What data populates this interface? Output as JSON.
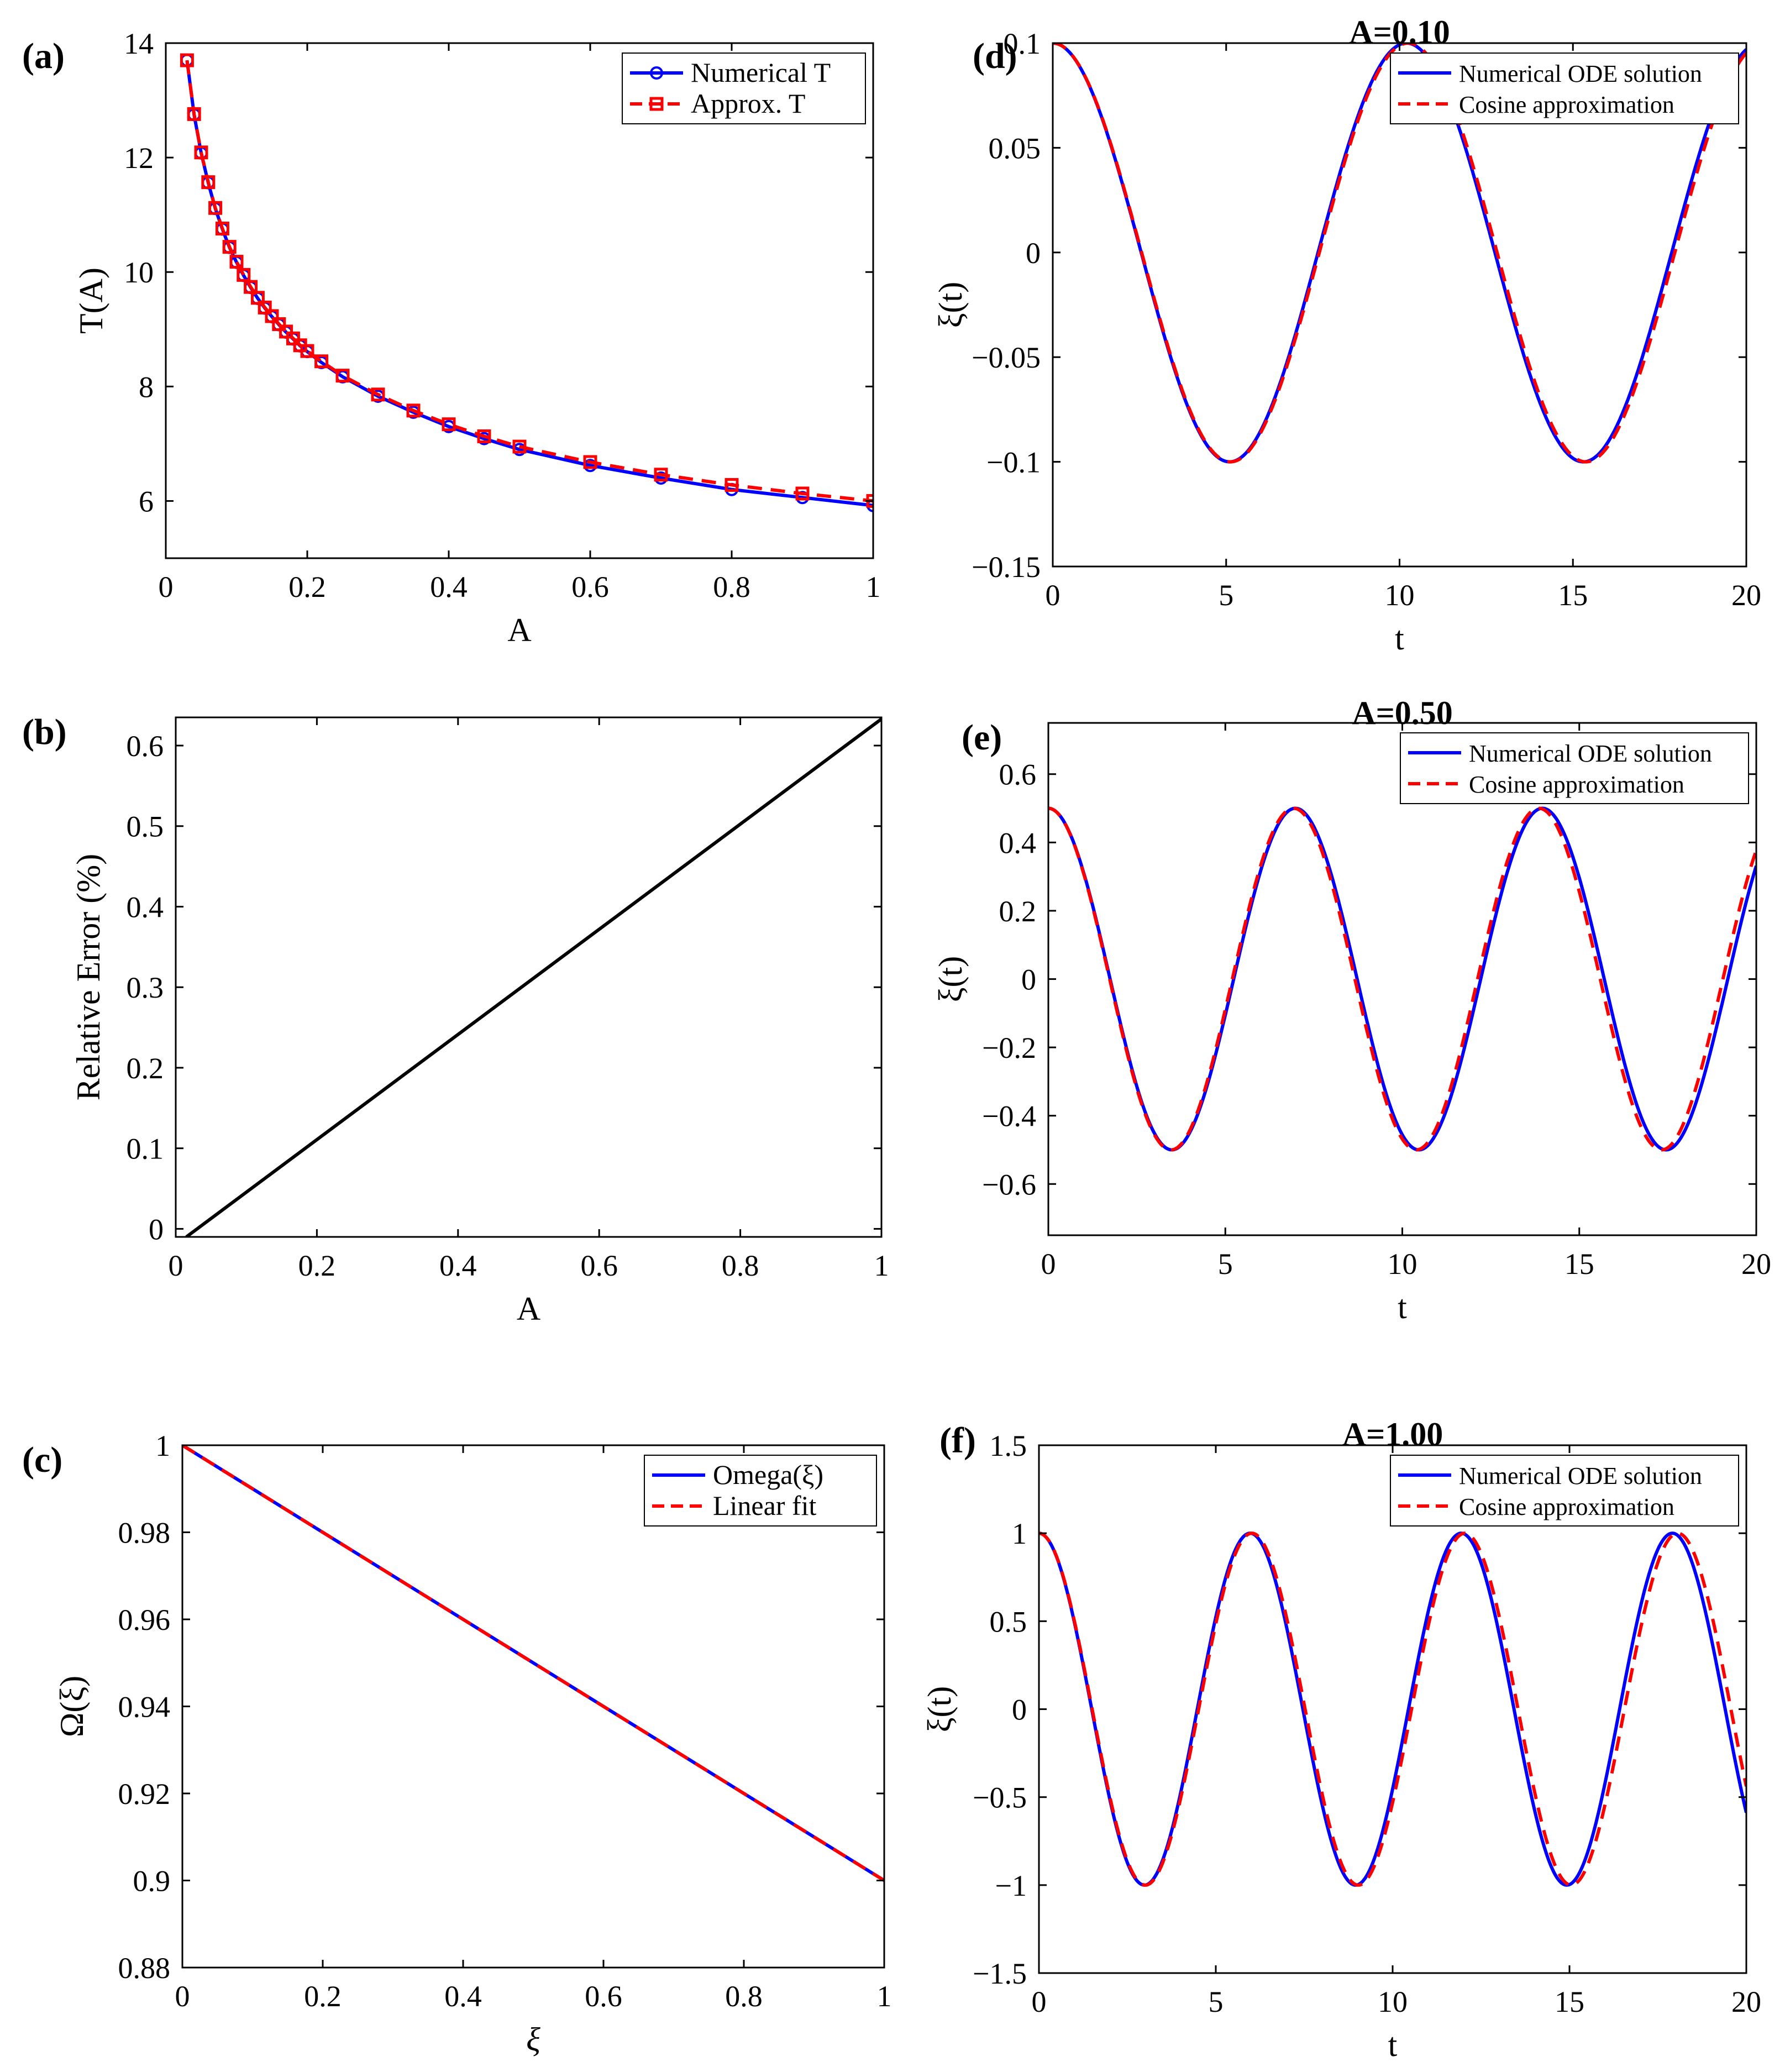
{
  "colors": {
    "blue": "#0000ff",
    "red": "#ff0000",
    "black": "#000000",
    "axis": "#000000"
  },
  "chart_data": [
    {
      "id": "a",
      "panel_label": "(a)",
      "type": "line",
      "title": "",
      "xlabel": "A",
      "ylabel": "T(A)",
      "xlim": [
        0,
        1
      ],
      "ylim": [
        5,
        14
      ],
      "xticks": [
        0,
        0.2,
        0.4,
        0.6,
        0.8,
        1
      ],
      "xtick_labels": [
        "0",
        "0.2",
        "0.4",
        "0.6",
        "0.8",
        "1"
      ],
      "yticks": [
        6,
        8,
        10,
        12,
        14
      ],
      "ytick_labels": [
        "6",
        "8",
        "10",
        "12",
        "14"
      ],
      "legend": {
        "position": "top-right"
      },
      "series": [
        {
          "name": "Numerical T",
          "color": "#0000ff",
          "style": "solid",
          "marker": "circle",
          "x": [
            0.03,
            0.04,
            0.05,
            0.06,
            0.07,
            0.08,
            0.09,
            0.1,
            0.11,
            0.12,
            0.13,
            0.14,
            0.15,
            0.16,
            0.17,
            0.18,
            0.19,
            0.2,
            0.22,
            0.25,
            0.3,
            0.35,
            0.4,
            0.45,
            0.5,
            0.6,
            0.7,
            0.8,
            0.9,
            1.0
          ],
          "y": [
            13.7,
            12.75,
            12.08,
            11.56,
            11.11,
            10.75,
            10.43,
            10.17,
            9.94,
            9.73,
            9.54,
            9.37,
            9.22,
            9.08,
            8.95,
            8.83,
            8.71,
            8.61,
            8.42,
            8.17,
            7.83,
            7.55,
            7.3,
            7.09,
            6.9,
            6.62,
            6.4,
            6.2,
            6.06,
            5.92
          ]
        },
        {
          "name": "Approx. T",
          "color": "#ff0000",
          "style": "dashed",
          "marker": "square",
          "x": [
            0.03,
            0.04,
            0.05,
            0.06,
            0.07,
            0.08,
            0.09,
            0.1,
            0.11,
            0.12,
            0.13,
            0.14,
            0.15,
            0.16,
            0.17,
            0.18,
            0.19,
            0.2,
            0.22,
            0.25,
            0.3,
            0.35,
            0.4,
            0.45,
            0.5,
            0.6,
            0.7,
            0.8,
            0.9,
            1.0
          ],
          "y": [
            13.7,
            12.76,
            12.09,
            11.57,
            11.12,
            10.76,
            10.44,
            10.18,
            9.95,
            9.74,
            9.55,
            9.38,
            9.23,
            9.09,
            8.96,
            8.84,
            8.72,
            8.62,
            8.44,
            8.19,
            7.86,
            7.58,
            7.34,
            7.13,
            6.95,
            6.68,
            6.46,
            6.28,
            6.13,
            6.0
          ]
        }
      ]
    },
    {
      "id": "b",
      "panel_label": "(b)",
      "type": "line",
      "title": "",
      "xlabel": "A",
      "ylabel": "Relative Error (%)",
      "xlim": [
        0,
        1
      ],
      "ylim": [
        -0.01,
        0.635
      ],
      "xticks": [
        0,
        0.2,
        0.4,
        0.6,
        0.8,
        1
      ],
      "xtick_labels": [
        "0",
        "0.2",
        "0.4",
        "0.6",
        "0.8",
        "1"
      ],
      "yticks": [
        0,
        0.1,
        0.2,
        0.3,
        0.4,
        0.5,
        0.6
      ],
      "ytick_labels": [
        "0",
        "0.1",
        "0.2",
        "0.3",
        "0.4",
        "0.5",
        "0.6"
      ],
      "legend": null,
      "series": [
        {
          "name": "Relative Error",
          "color": "#000000",
          "style": "solid",
          "marker": "none",
          "x": [
            0.015,
            1.0
          ],
          "y": [
            -0.01,
            0.633
          ]
        }
      ]
    },
    {
      "id": "c",
      "panel_label": "(c)",
      "type": "line",
      "title": "",
      "xlabel": "ξ",
      "ylabel": "Ω(ξ)",
      "xlim": [
        0,
        1
      ],
      "ylim": [
        0.88,
        1.0
      ],
      "xticks": [
        0,
        0.2,
        0.4,
        0.6,
        0.8,
        1
      ],
      "xtick_labels": [
        "0",
        "0.2",
        "0.4",
        "0.6",
        "0.8",
        "1"
      ],
      "yticks": [
        0.88,
        0.9,
        0.92,
        0.94,
        0.96,
        0.98,
        1.0
      ],
      "ytick_labels": [
        "0.88",
        "0.9",
        "0.92",
        "0.94",
        "0.96",
        "0.98",
        "1"
      ],
      "legend": {
        "position": "top-right"
      },
      "series": [
        {
          "name": "Omega(ξ)",
          "color": "#0000ff",
          "style": "solid",
          "marker": "none",
          "x": [
            0,
            1
          ],
          "y": [
            1.0,
            0.9
          ]
        },
        {
          "name": "Linear fit",
          "color": "#ff0000",
          "style": "dashed",
          "marker": "none",
          "x": [
            0,
            1
          ],
          "y": [
            1.0,
            0.9
          ]
        }
      ]
    },
    {
      "id": "d",
      "panel_label": "(d)",
      "type": "line",
      "title": "A=0.10",
      "xlabel": "t",
      "ylabel": "ξ(t)",
      "xlim": [
        0,
        20
      ],
      "ylim": [
        -0.15,
        0.1
      ],
      "xticks": [
        0,
        5,
        10,
        15,
        20
      ],
      "xtick_labels": [
        "0",
        "5",
        "10",
        "15",
        "20"
      ],
      "yticks": [
        -0.15,
        -0.1,
        -0.05,
        0,
        0.05,
        0.1
      ],
      "ytick_labels": [
        "−0.15",
        "−0.1",
        "−0.05",
        "0",
        "0.05",
        "0.1"
      ],
      "legend": {
        "position": "top-right"
      },
      "series": [
        {
          "name": "Numerical ODE solution",
          "color": "#0000ff",
          "style": "solid",
          "function": "cosine",
          "amplitude": 0.1,
          "period": 10.2
        },
        {
          "name": "Cosine approximation",
          "color": "#ff0000",
          "style": "dashed",
          "function": "cosine",
          "amplitude": 0.1,
          "period": 10.25
        }
      ]
    },
    {
      "id": "e",
      "panel_label": "(e)",
      "type": "line",
      "title": "A=0.50",
      "xlabel": "t",
      "ylabel": "ξ(t)",
      "xlim": [
        0,
        20
      ],
      "ylim": [
        -0.75,
        0.75
      ],
      "xticks": [
        0,
        5,
        10,
        15,
        20
      ],
      "xtick_labels": [
        "0",
        "5",
        "10",
        "15",
        "20"
      ],
      "yticks": [
        -0.6,
        -0.4,
        -0.2,
        0,
        0.2,
        0.4,
        0.6
      ],
      "ytick_labels": [
        "−0.6",
        "−0.4",
        "−0.2",
        "0",
        "0.2",
        "0.4",
        "0.6"
      ],
      "legend": {
        "position": "top-right"
      },
      "series": [
        {
          "name": "Numerical ODE solution",
          "color": "#0000ff",
          "style": "solid",
          "function": "cosine",
          "amplitude": 0.5,
          "period": 6.98
        },
        {
          "name": "Cosine approximation",
          "color": "#ff0000",
          "style": "dashed",
          "function": "cosine",
          "amplitude": 0.5,
          "period": 6.93
        }
      ]
    },
    {
      "id": "f",
      "panel_label": "(f)",
      "type": "line",
      "title": "A=1.00",
      "xlabel": "t",
      "ylabel": "ξ(t)",
      "xlim": [
        0,
        20
      ],
      "ylim": [
        -1.5,
        1.5
      ],
      "xticks": [
        0,
        5,
        10,
        15,
        20
      ],
      "xtick_labels": [
        "0",
        "5",
        "10",
        "15",
        "20"
      ],
      "yticks": [
        -1.5,
        -1,
        -0.5,
        0,
        0.5,
        1,
        1.5
      ],
      "ytick_labels": [
        "−1.5",
        "−1",
        "−0.5",
        "0",
        "0.5",
        "1",
        "1.5"
      ],
      "legend": {
        "position": "top-right"
      },
      "series": [
        {
          "name": "Numerical ODE solution",
          "color": "#0000ff",
          "style": "solid",
          "function": "cosine",
          "amplitude": 1.0,
          "period": 5.97
        },
        {
          "name": "Cosine approximation",
          "color": "#ff0000",
          "style": "dashed",
          "function": "cosine",
          "amplitude": 1.0,
          "period": 6.02
        }
      ]
    }
  ]
}
